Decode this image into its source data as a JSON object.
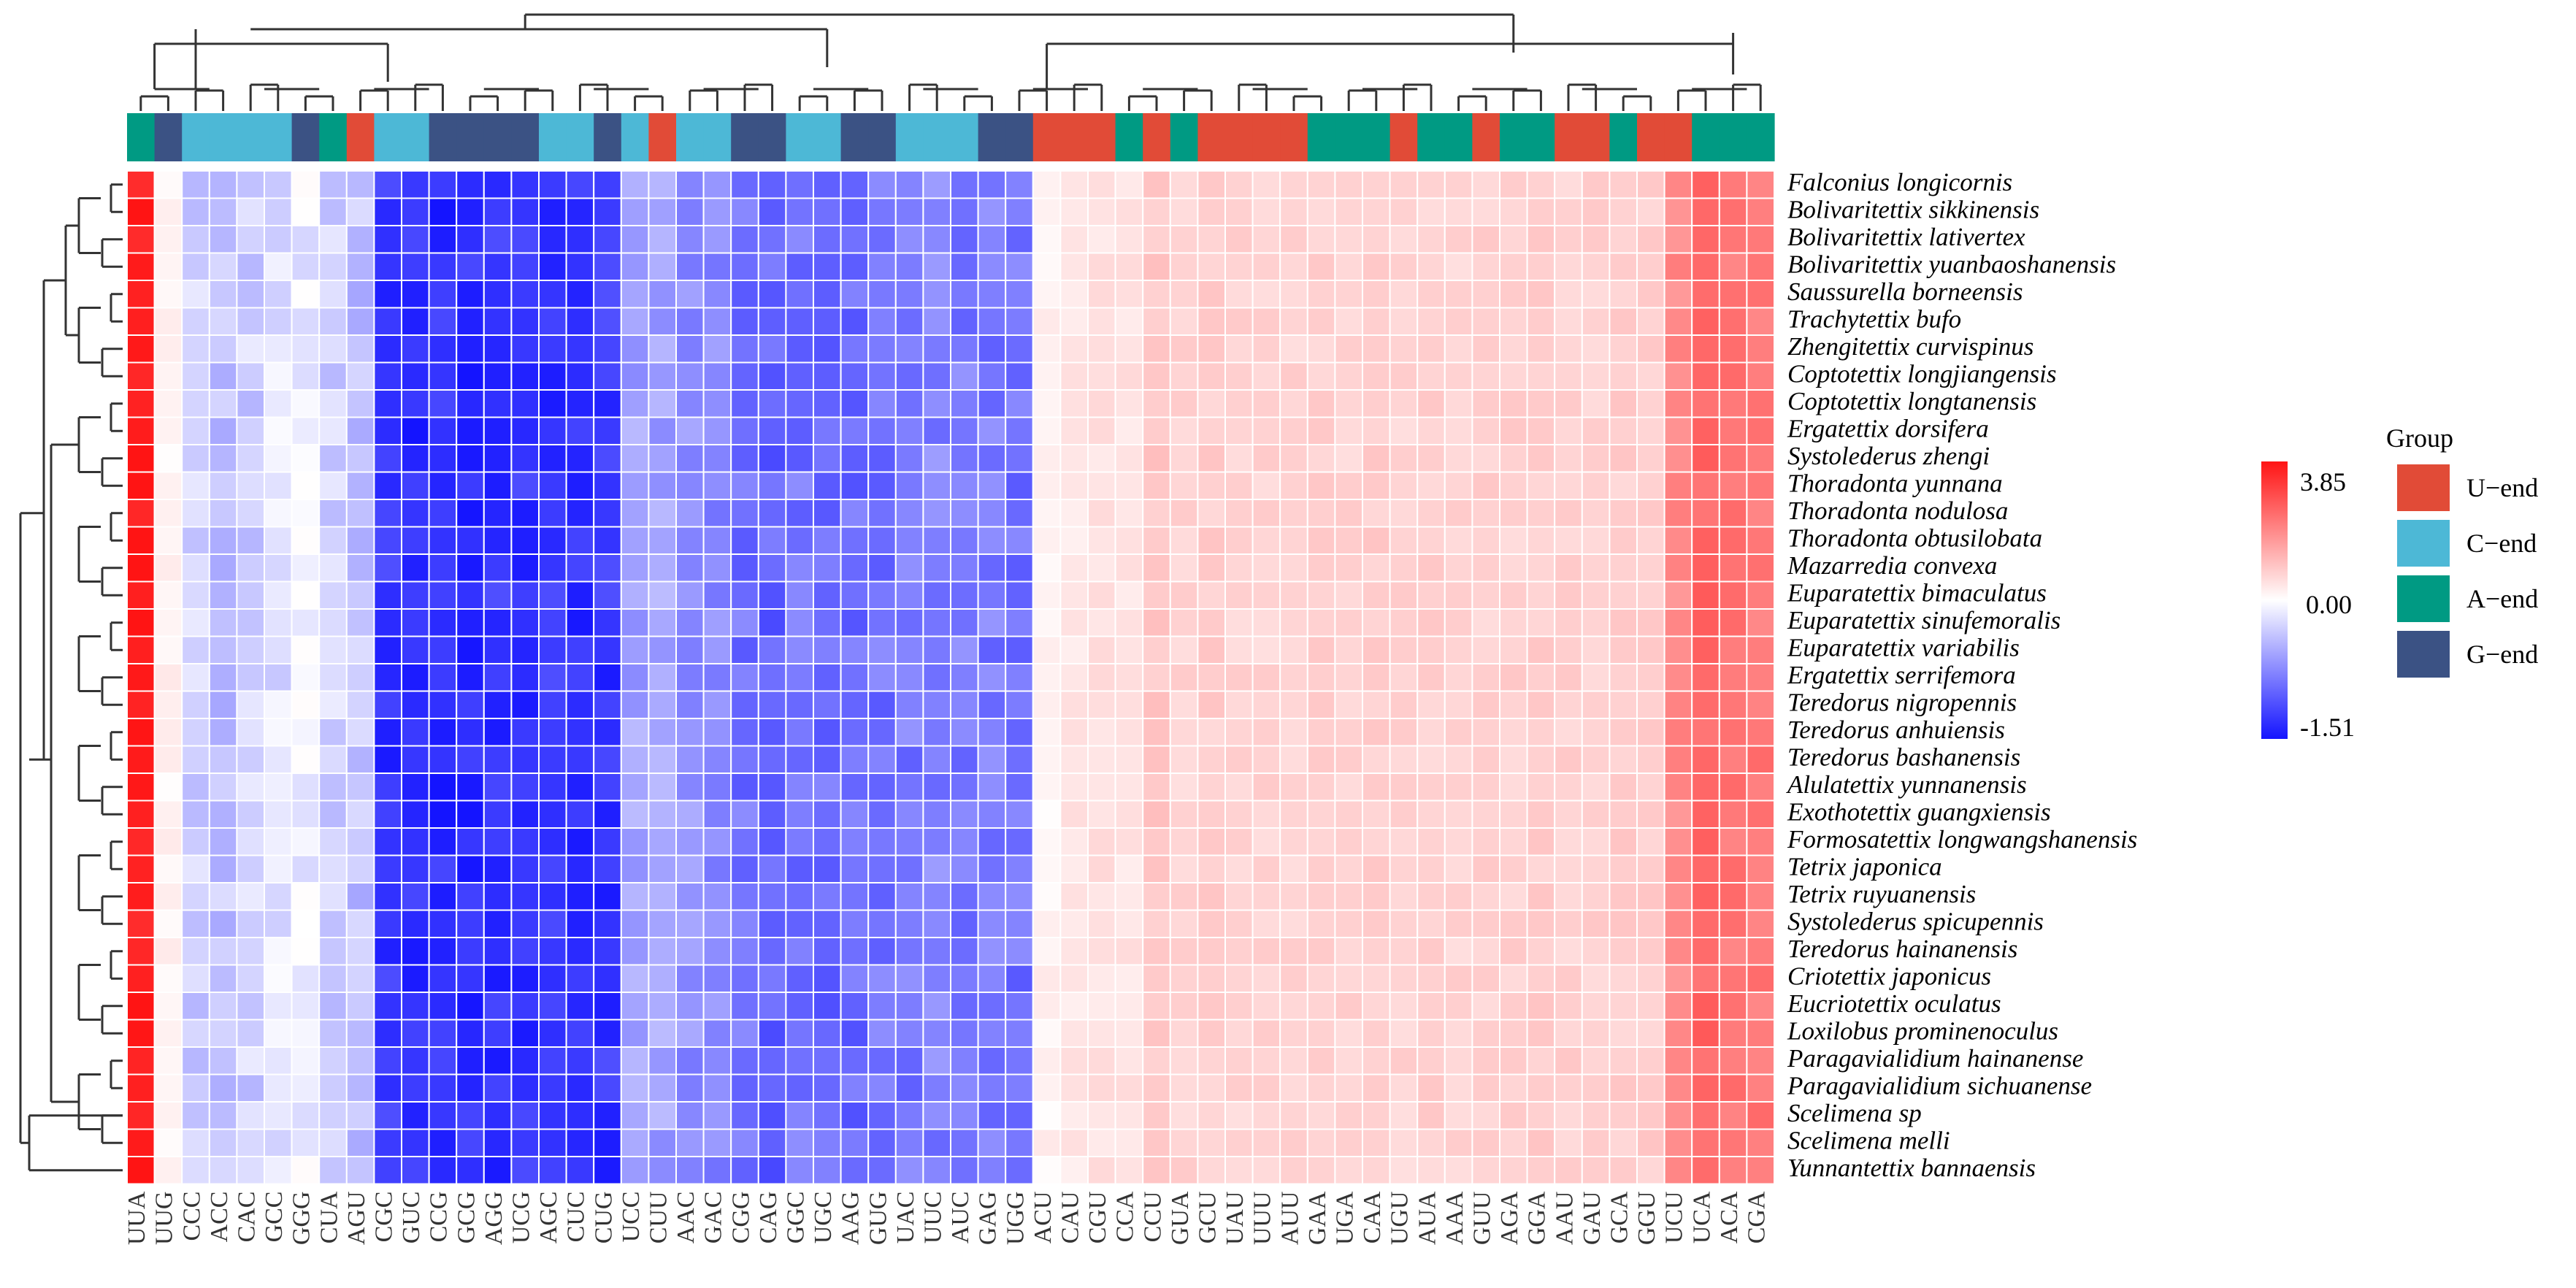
{
  "chart_data": {
    "type": "heatmap",
    "title": "",
    "rows": [
      "Falconius longicornis",
      "Bolivaritettix sikkinensis",
      "Bolivaritettix lativertex",
      "Bolivaritettix yuanbaoshanensis",
      "Saussurella borneensis",
      "Trachytettix bufo",
      "Zhengitettix curvispinus",
      "Coptotettix longjiangensis",
      "Coptotettix longtanensis",
      "Ergatettix dorsifera",
      "Systolederus zhengi",
      "Thoradonta yunnana",
      "Thoradonta nodulosa",
      "Thoradonta obtusilobata",
      "Mazarredia convexa",
      "Euparatettix bimaculatus",
      "Euparatettix sinufemoralis",
      "Euparatettix variabilis",
      "Ergatettix serrifemora",
      "Teredorus nigropennis",
      "Teredorus anhuiensis",
      "Teredorus bashanensis",
      "Alulatettix yunnanensis",
      "Exothotettix guangxiensis",
      "Formosatettix longwangshanensis",
      "Tetrix japonica",
      "Tetrix ruyuanensis",
      "Systolederus spicupennis",
      "Teredorus hainanensis",
      "Criotettix japonicus",
      "Eucriotettix oculatus",
      "Loxilobus prominenoculus",
      "Paragavialidium hainanense",
      "Paragavialidium sichuanense",
      "Scelimena sp",
      "Scelimena melli",
      "Yunnantettix bannaensis"
    ],
    "columns": [
      "UUA",
      "UUG",
      "CCC",
      "ACC",
      "CAC",
      "GCC",
      "GGG",
      "CUA",
      "AGU",
      "CGC",
      "GUC",
      "CCG",
      "GCG",
      "AGG",
      "UCG",
      "AGC",
      "CUC",
      "CUG",
      "UCC",
      "CUU",
      "AAC",
      "GAC",
      "CGG",
      "CAG",
      "GGC",
      "UGC",
      "AAG",
      "GUG",
      "UAC",
      "UUC",
      "AUC",
      "GAG",
      "UGG",
      "ACU",
      "CAU",
      "CGU",
      "CCA",
      "CCU",
      "GUA",
      "GCU",
      "UAU",
      "UUU",
      "AUU",
      "GAA",
      "UGA",
      "CAA",
      "UGU",
      "AUA",
      "AAA",
      "GUU",
      "AGA",
      "GGA",
      "AAU",
      "GAU",
      "GCA",
      "GGU",
      "UCU",
      "UCA",
      "ACA",
      "CGA"
    ],
    "column_groups": [
      "A-end",
      "G-end",
      "C-end",
      "C-end",
      "C-end",
      "C-end",
      "G-end",
      "A-end",
      "U-end",
      "C-end",
      "C-end",
      "G-end",
      "G-end",
      "G-end",
      "G-end",
      "C-end",
      "C-end",
      "G-end",
      "C-end",
      "U-end",
      "C-end",
      "C-end",
      "G-end",
      "G-end",
      "C-end",
      "C-end",
      "G-end",
      "G-end",
      "C-end",
      "C-end",
      "C-end",
      "G-end",
      "G-end",
      "U-end",
      "U-end",
      "U-end",
      "A-end",
      "U-end",
      "A-end",
      "U-end",
      "U-end",
      "U-end",
      "U-end",
      "A-end",
      "A-end",
      "A-end",
      "U-end",
      "A-end",
      "A-end",
      "U-end",
      "A-end",
      "A-end",
      "U-end",
      "U-end",
      "A-end",
      "U-end",
      "U-end",
      "A-end",
      "A-end",
      "A-end"
    ],
    "column_base_values": [
      3.7,
      0.2,
      -0.3,
      -0.4,
      -0.3,
      -0.2,
      -0.1,
      -0.3,
      -0.4,
      -1.3,
      -1.35,
      -1.35,
      -1.35,
      -1.3,
      -1.3,
      -1.3,
      -1.35,
      -1.3,
      -0.6,
      -0.6,
      -0.7,
      -0.75,
      -0.9,
      -1.0,
      -0.9,
      -0.95,
      -0.95,
      -0.9,
      -0.85,
      -0.8,
      -0.85,
      -0.85,
      -0.9,
      0.2,
      0.4,
      0.5,
      0.45,
      0.9,
      0.7,
      0.8,
      0.7,
      0.7,
      0.7,
      0.75,
      0.7,
      0.8,
      0.7,
      0.75,
      0.7,
      0.75,
      0.75,
      0.8,
      0.75,
      0.75,
      0.8,
      0.8,
      1.9,
      2.5,
      2.2,
      2.2
    ],
    "color_scale": {
      "min": -1.51,
      "mid": 0.0,
      "max": 3.85,
      "min_color": "#1414ff",
      "mid_color": "#ffffff",
      "max_color": "#ff1414"
    },
    "colorbar_labels": [
      "3.85",
      "0.00",
      "-1.51"
    ],
    "legend": {
      "title": "Group",
      "entries": [
        {
          "label": "U−end",
          "color": "#e14b37"
        },
        {
          "label": "C−end",
          "color": "#4db8d6"
        },
        {
          "label": "A−end",
          "color": "#009a83"
        },
        {
          "label": "G−end",
          "color": "#3b5284"
        }
      ]
    },
    "group_colors": {
      "U-end": "#e14b37",
      "C-end": "#4db8d6",
      "A-end": "#009a83",
      "G-end": "#3b5284"
    }
  }
}
